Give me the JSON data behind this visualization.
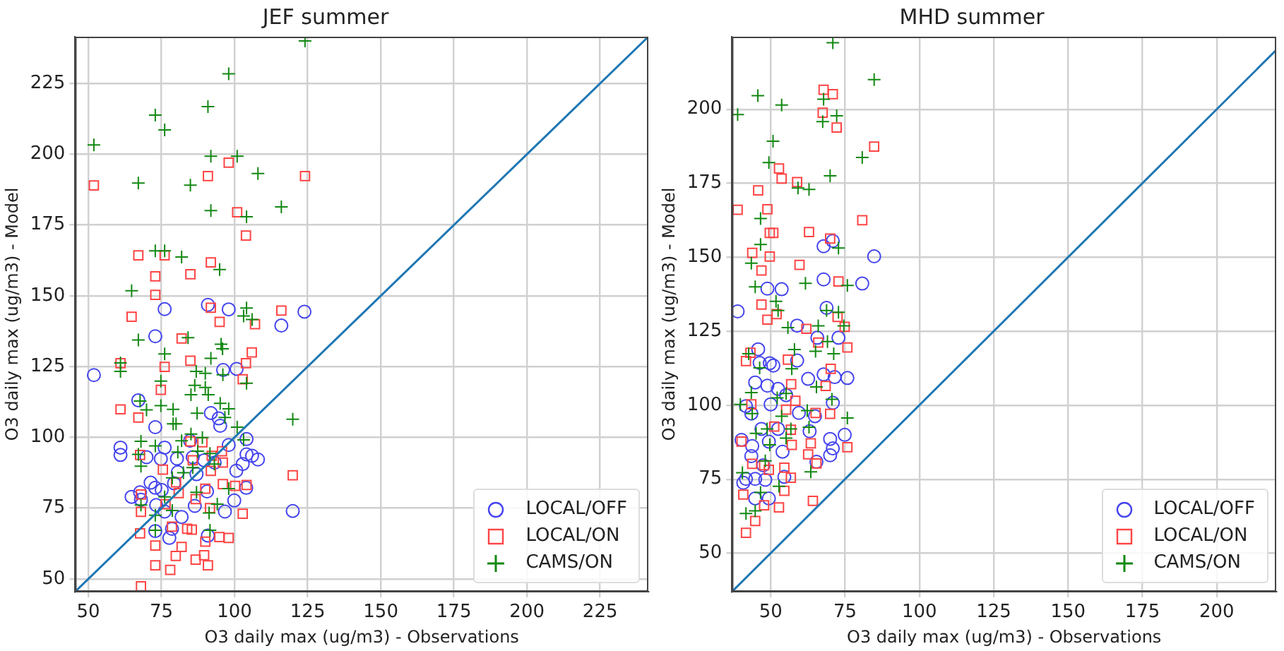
{
  "chart_data": [
    {
      "type": "scatter",
      "title": "JEF summer",
      "xlabel": "O3 daily max (ug/m3) - Observations",
      "ylabel": "O3 daily max (ug/m3) - Model",
      "xlim": [
        45.5,
        241.5
      ],
      "ylim": [
        45.5,
        241.5
      ],
      "xticks": [
        50,
        75,
        100,
        125,
        150,
        175,
        200,
        225
      ],
      "yticks": [
        50,
        75,
        100,
        125,
        150,
        175,
        200,
        225
      ],
      "grid": true,
      "legend": "bottom right",
      "series": [
        {
          "name": "LOCAL/OFF",
          "color": "#4444ee",
          "marker": "circle",
          "x": [
            51.9,
            76.1,
            90.9,
            98.0,
            123.9,
            116.0,
            72.9,
            96.1,
            100.7,
            67.1,
            91.9,
            94.6,
            95.1,
            72.9,
            61.0,
            61.0,
            76.1,
            84.8,
            98.0,
            104.1,
            69.9,
            74.8,
            80.3,
            85.7,
            89.6,
            93.2,
            104.1,
            106.0,
            108.0,
            102.8,
            100.6,
            80.6,
            87.0,
            71.3,
            79.3,
            64.8,
            67.7,
            68.0,
            72.9,
            75.1,
            90.6,
            104.0,
            99.9,
            73.2,
            76.1,
            81.9,
            86.4,
            96.7,
            119.9,
            77.7,
            78.6,
            90.9,
            72.9
          ],
          "values": [
            122.0,
            145.3,
            146.8,
            145.2,
            144.4,
            139.5,
            135.7,
            123.8,
            124.2,
            113.1,
            108.6,
            106.7,
            104.1,
            103.6,
            96.4,
            93.8,
            96.4,
            98.8,
            97.3,
            99.4,
            93.0,
            92.4,
            92.5,
            93.0,
            91.9,
            91.1,
            94.0,
            93.5,
            92.2,
            90.6,
            88.2,
            87.7,
            87.0,
            84.0,
            83.8,
            79.0,
            80.6,
            78.0,
            82.2,
            81.4,
            80.9,
            82.2,
            77.7,
            76.1,
            73.8,
            71.9,
            75.8,
            73.8,
            74.0,
            64.5,
            67.7,
            65.3,
            66.9
          ]
        },
        {
          "name": "LOCAL/ON",
          "color": "#ff4444",
          "marker": "square",
          "x": [
            51.9,
            98.0,
            90.9,
            124.1,
            100.9,
            103.9,
            67.1,
            76.1,
            91.9,
            72.9,
            84.9,
            72.9,
            64.8,
            91.9,
            116.0,
            94.9,
            107.0,
            81.9,
            105.9,
            61.0,
            76.1,
            84.9,
            103.9,
            102.8,
            74.8,
            61.0,
            67.1,
            84.9,
            67.7,
            75.5,
            89.0,
            92.2,
            95.7,
            96.0,
            85.7,
            91.9,
            119.9,
            80.0,
            96.0,
            100.2,
            104.1,
            90.0,
            68.0,
            80.9,
            76.4,
            68.0,
            86.7,
            91.6,
            102.8,
            78.6,
            83.8,
            85.4,
            67.7,
            72.9,
            90.0,
            94.8,
            98.0,
            81.9,
            79.9,
            86.7,
            89.6,
            72.9,
            78.0,
            90.9,
            68.0
          ],
          "values": [
            189.0,
            197.0,
            192.3,
            192.3,
            179.5,
            171.3,
            164.3,
            164.3,
            161.8,
            156.9,
            157.6,
            150.3,
            142.6,
            145.8,
            144.8,
            140.8,
            140.0,
            134.9,
            130.0,
            126.2,
            124.9,
            127.1,
            126.2,
            120.5,
            116.8,
            109.9,
            107.0,
            98.6,
            93.8,
            88.6,
            98.3,
            93.5,
            95.1,
            91.1,
            91.9,
            88.2,
            86.6,
            84.1,
            83.5,
            82.9,
            83.2,
            81.9,
            79.8,
            80.3,
            76.4,
            73.7,
            78.2,
            75.0,
            73.0,
            68.5,
            67.7,
            67.4,
            66.1,
            61.8,
            63.2,
            64.8,
            64.5,
            61.3,
            58.1,
            56.8,
            58.4,
            54.8,
            53.2,
            54.8,
            47.4
          ]
        },
        {
          "name": "CAMS/ON",
          "color": "#118811",
          "marker": "cross",
          "x": [
            124.1,
            98.0,
            90.9,
            72.9,
            76.1,
            51.9,
            91.9,
            100.9,
            108.0,
            67.1,
            84.9,
            91.9,
            116.0,
            104.1,
            72.9,
            76.1,
            81.9,
            94.9,
            64.8,
            67.1,
            84.1,
            76.1,
            95.4,
            95.9,
            91.9,
            104.1,
            103.1,
            106.0,
            61.0,
            61.0,
            74.8,
            86.9,
            90.0,
            96.0,
            104.1,
            86.4,
            90.0,
            85.1,
            91.0,
            67.7,
            69.9,
            74.8,
            79.0,
            87.2,
            95.1,
            98.0,
            96.7,
            79.0,
            80.0,
            100.9,
            85.1,
            68.0,
            72.9,
            81.9,
            89.0,
            103.1,
            119.9,
            67.1,
            80.6,
            87.4,
            91.6,
            68.0,
            85.7,
            93.1,
            78.7,
            82.5,
            87.0,
            76.1,
            98.0,
            94.1,
            68.0,
            78.7,
            72.9,
            91.3,
            72.9,
            91.6
          ],
          "values": [
            240.0,
            228.4,
            216.8,
            213.8,
            208.6,
            203.3,
            199.3,
            199.3,
            193.2,
            189.8,
            189.1,
            180.1,
            181.4,
            177.9,
            165.9,
            165.9,
            163.7,
            159.3,
            151.8,
            134.4,
            135.2,
            129.5,
            132.9,
            131.3,
            127.9,
            145.7,
            142.9,
            141.6,
            126.3,
            123.3,
            119.9,
            123.3,
            122.6,
            122.1,
            119.1,
            118.4,
            117.6,
            115.1,
            115.1,
            112.8,
            109.7,
            111.2,
            109.9,
            108.5,
            112.0,
            110.1,
            107.0,
            104.8,
            104.8,
            103.6,
            101.2,
            98.6,
            97.0,
            98.8,
            99.9,
            99.1,
            106.4,
            94.0,
            94.8,
            95.1,
            94.3,
            89.8,
            89.3,
            90.6,
            85.7,
            87.5,
            80.6,
            79.0,
            81.9,
            76.4,
            76.1,
            74.2,
            72.5,
            73.3,
            67.2,
            67.2
          ]
        },
        {
          "type": "line",
          "color": "#1f77b4",
          "marker": "none",
          "line_style": "solid",
          "x": [
            45.5,
            241.5
          ],
          "values": [
            45.5,
            241.5
          ]
        }
      ]
    },
    {
      "type": "scatter",
      "title": "MHD summer",
      "xlabel": "O3 daily max (ug/m3) - Observations",
      "ylabel": "O3 daily max (ug/m3) - Model",
      "xlim": [
        37,
        220
      ],
      "ylim": [
        37,
        224.5
      ],
      "xticks": [
        50,
        75,
        100,
        125,
        150,
        175,
        200
      ],
      "yticks": [
        50,
        75,
        100,
        125,
        150,
        175,
        200
      ],
      "grid": true,
      "legend": "bottom right",
      "series": [
        {
          "name": "LOCAL/OFF",
          "color": "#4444ee",
          "marker": "circle",
          "x": [
            38.9,
            48.9,
            53.7,
            67.8,
            67.8,
            70.9,
            84.8,
            80.8,
            58.9,
            68.8,
            65.7,
            72.8,
            45.8,
            49.7,
            50.9,
            46.3,
            44.8,
            48.9,
            52.5,
            58.9,
            62.6,
            67.8,
            71.5,
            75.8,
            41.7,
            50.0,
            55.2,
            70.9,
            59.5,
            43.5,
            46.9,
            52.5,
            63.1,
            64.9,
            40.2,
            43.8,
            49.4,
            54.0,
            70.0,
            74.9,
            70.9,
            70.0,
            65.4,
            43.5,
            47.5,
            41.7,
            40.8,
            44.8,
            48.2,
            54.6,
            44.8,
            49.4
          ],
          "values": [
            131.7,
            139.4,
            139.2,
            142.5,
            153.7,
            155.5,
            150.3,
            141.1,
            126.9,
            132.9,
            122.8,
            122.8,
            118.9,
            114.2,
            113.4,
            114.3,
            107.7,
            106.6,
            105.5,
            115.1,
            108.9,
            110.4,
            109.5,
            109.2,
            99.7,
            100.3,
            103.4,
            100.8,
            97.4,
            97.2,
            92.0,
            92.0,
            91.2,
            96.3,
            88.3,
            86.2,
            87.7,
            84.3,
            88.6,
            90.0,
            85.4,
            83.1,
            80.9,
            82.8,
            79.7,
            75.1,
            73.8,
            75.1,
            74.8,
            75.8,
            68.5,
            68.5
          ]
        },
        {
          "name": "LOCAL/ON",
          "color": "#ff4444",
          "marker": "square",
          "x": [
            67.8,
            70.9,
            67.5,
            72.2,
            84.8,
            52.8,
            53.7,
            58.9,
            45.8,
            38.9,
            48.9,
            80.8,
            49.7,
            50.9,
            62.9,
            70.0,
            43.8,
            49.7,
            46.9,
            59.7,
            72.8,
            46.9,
            52.0,
            48.9,
            72.5,
            62.0,
            74.9,
            75.8,
            66.0,
            43.2,
            41.7,
            55.8,
            56.9,
            70.2,
            68.5,
            43.5,
            55.2,
            58.3,
            70.0,
            65.1,
            51.2,
            56.8,
            40.2,
            63.5,
            57.1,
            75.8,
            62.6,
            43.8,
            47.8,
            54.6,
            56.8,
            49.4,
            65.4,
            40.8,
            54.6,
            47.8,
            52.8,
            64.2,
            44.8,
            41.7
          ],
          "values": [
            206.6,
            205.1,
            198.8,
            193.8,
            187.4,
            180.0,
            176.6,
            175.4,
            172.6,
            166.0,
            166.2,
            162.5,
            158.2,
            158.2,
            158.5,
            156.3,
            151.5,
            150.2,
            145.5,
            147.4,
            141.8,
            134.0,
            130.8,
            128.9,
            129.8,
            125.8,
            126.5,
            119.5,
            121.2,
            117.7,
            114.9,
            115.4,
            107.1,
            112.3,
            106.5,
            100.3,
            98.5,
            101.5,
            97.1,
            97.4,
            92.8,
            91.7,
            87.7,
            87.1,
            86.6,
            85.8,
            83.4,
            80.2,
            79.7,
            78.9,
            75.5,
            78.2,
            80.3,
            69.8,
            71.1,
            66.2,
            65.5,
            67.7,
            60.9,
            56.9
          ]
        },
        {
          "name": "CAMS/ON",
          "color": "#118811",
          "marker": "cross",
          "x": [
            70.9,
            84.8,
            45.7,
            53.7,
            38.9,
            67.8,
            72.2,
            67.5,
            50.8,
            49.4,
            80.8,
            70.0,
            59.2,
            62.9,
            46.6,
            46.6,
            72.8,
            43.5,
            44.8,
            61.7,
            75.8,
            51.8,
            52.5,
            68.8,
            72.8,
            55.8,
            66.0,
            74.6,
            42.6,
            58.0,
            65.1,
            69.1,
            71.2,
            46.3,
            57.1,
            43.5,
            65.4,
            52.2,
            55.2,
            39.8,
            43.8,
            70.6,
            62.3,
            48.8,
            53.7,
            56.8,
            62.9,
            75.8,
            45.1,
            49.7,
            55.2,
            40.5,
            48.2,
            63.5,
            52.8,
            46.6,
            44.8,
            41.7
          ],
          "values": [
            222.5,
            210.0,
            204.6,
            201.4,
            198.2,
            203.4,
            197.8,
            195.8,
            189.2,
            182.0,
            183.7,
            177.5,
            173.4,
            172.9,
            163.1,
            154.3,
            153.1,
            148.0,
            140.0,
            141.2,
            140.5,
            135.1,
            132.0,
            132.0,
            131.4,
            126.2,
            126.8,
            126.8,
            117.4,
            118.8,
            118.2,
            121.5,
            117.4,
            112.6,
            112.3,
            104.3,
            106.2,
            102.5,
            104.0,
            100.3,
            97.2,
            102.0,
            98.2,
            92.0,
            96.3,
            92.0,
            92.6,
            95.7,
            90.5,
            86.6,
            88.9,
            77.2,
            81.2,
            77.5,
            72.6,
            70.5,
            64.3,
            63.4
          ]
        },
        {
          "type": "line",
          "color": "#1f77b4",
          "marker": "none",
          "line_style": "solid",
          "x": [
            37,
            220
          ],
          "values": [
            37,
            220
          ]
        }
      ]
    }
  ]
}
